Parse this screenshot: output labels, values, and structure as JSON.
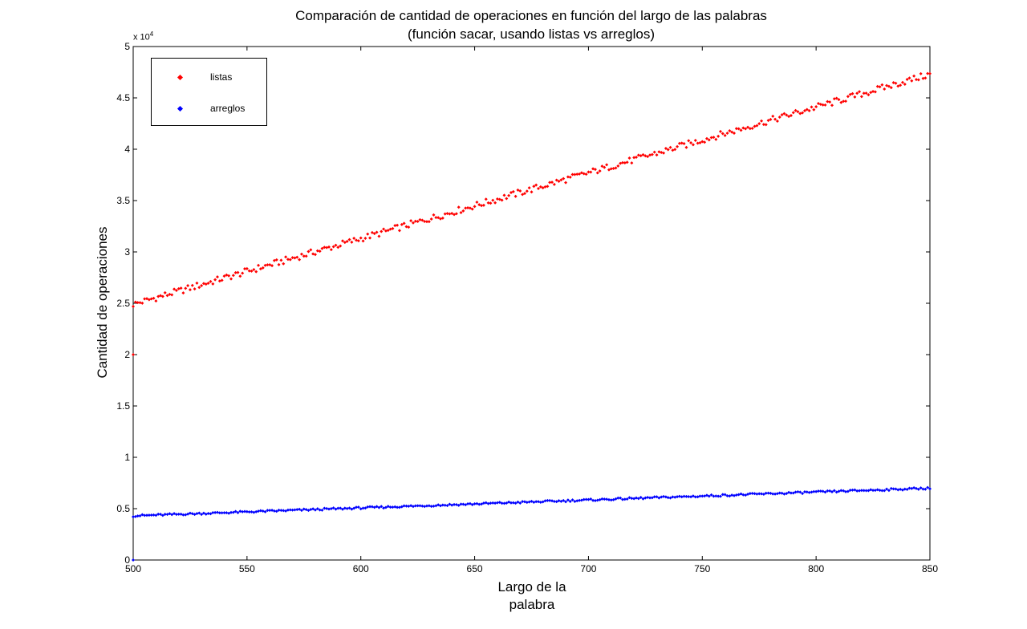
{
  "chart_data": {
    "type": "scatter",
    "title": "Comparación de cantidad de operaciones en función del largo de las palabras",
    "subtitle": "(función sacar, usando listas vs arreglos)",
    "xlabel_line1": "Largo de la",
    "xlabel_line2": "palabra",
    "ylabel": "Cantidad de operaciones",
    "y_exponent_label": "x 10",
    "y_exponent_power": "4",
    "xlim": [
      500,
      850
    ],
    "ylim": [
      0,
      50000
    ],
    "x_ticks": [
      500,
      550,
      600,
      650,
      700,
      750,
      800,
      850
    ],
    "y_ticks": [
      0,
      5000,
      10000,
      15000,
      20000,
      25000,
      30000,
      35000,
      40000,
      45000,
      50000
    ],
    "y_tick_labels": [
      "0",
      "0.5",
      "1",
      "1.5",
      "2",
      "2.5",
      "3",
      "3.5",
      "4",
      "4.5",
      "5"
    ],
    "legend_position": "top-left",
    "series": [
      {
        "name": "listas",
        "color": "#ff0000",
        "marker": "diamond",
        "x_start": 500,
        "x_end": 850,
        "x_step": 1,
        "trend_start": 24900,
        "trend_end": 47300,
        "outliers": [
          {
            "x": 500,
            "y": 20000
          }
        ]
      },
      {
        "name": "arreglos",
        "color": "#0000ff",
        "marker": "diamond",
        "x_start": 500,
        "x_end": 850,
        "x_step": 1,
        "trend_start": 4300,
        "trend_end": 7000,
        "outliers": [
          {
            "x": 500,
            "y": 0
          }
        ]
      }
    ]
  }
}
